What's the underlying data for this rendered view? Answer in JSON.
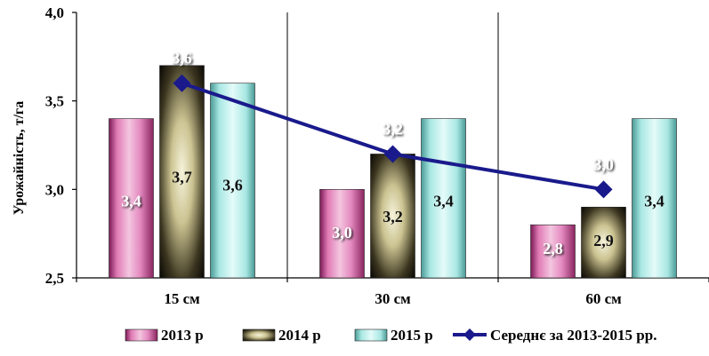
{
  "chart_data": {
    "type": "bar",
    "title": "",
    "xlabel": "",
    "ylabel": "Урожайність, т/га",
    "ylim": [
      2.5,
      4.0
    ],
    "yticks": [
      "2,5",
      "3,0",
      "3,5",
      "4,0"
    ],
    "ytick_values": [
      2.5,
      3.0,
      3.5,
      4.0
    ],
    "grid": "vertical separators between categories",
    "legend_position": "bottom",
    "categories": [
      "15 см",
      "30 см",
      "60 см"
    ],
    "series": [
      {
        "name": "2013 р",
        "values": [
          3.4,
          3.0,
          2.8
        ],
        "labels": [
          "3,4",
          "3,0",
          "2,8"
        ],
        "color": "#e68fc0"
      },
      {
        "name": "2014 р",
        "values": [
          3.7,
          3.2,
          2.9
        ],
        "labels": [
          "3,7",
          "3,2",
          "2,9"
        ],
        "color": "#d8d3a8"
      },
      {
        "name": "2015 р",
        "values": [
          3.6,
          3.4,
          3.4
        ],
        "labels": [
          "3,6",
          "3,4",
          "3,4"
        ],
        "color": "#bff1ee"
      }
    ],
    "line": {
      "name": "Середнє за 2013-2015 рр.",
      "type": "line",
      "values": [
        3.6,
        3.2,
        3.0
      ],
      "labels": [
        "3,6",
        "3,2",
        "3,0"
      ],
      "color": "#1a1a8c"
    }
  }
}
